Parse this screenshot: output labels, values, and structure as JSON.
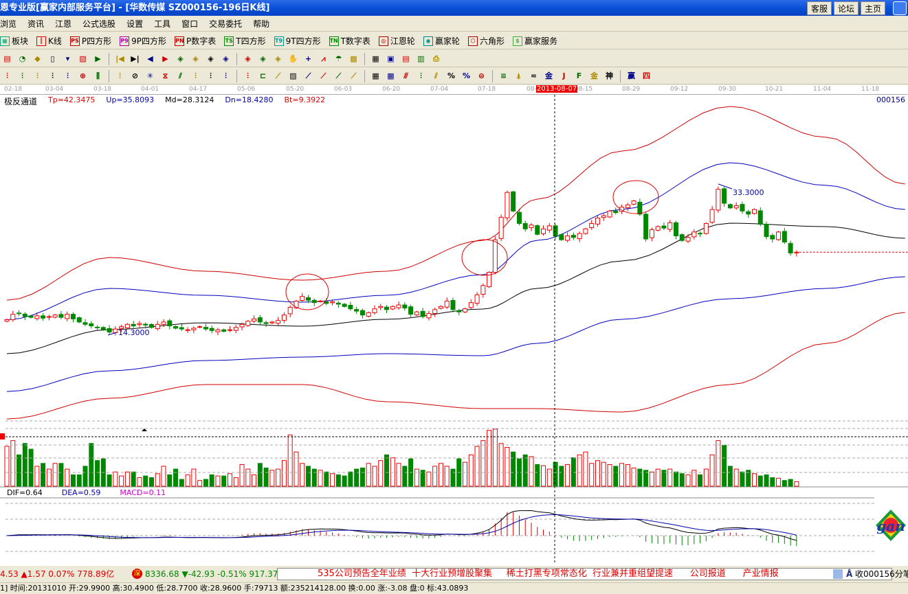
{
  "window": {
    "title": "恩专业版[赢家内部服务平台] - [华数传媒   SZ000156-196日K线]",
    "buttons": [
      "客服",
      "论坛",
      "主页"
    ]
  },
  "menu": [
    "浏览",
    "资讯",
    "江恩",
    "公式选股",
    "设置",
    "工具",
    "窗口",
    "交易委托",
    "帮助"
  ],
  "toolbar1": [
    {
      "icon": "blocks-icon",
      "glyph": "▦",
      "label": "板块",
      "color": "#0a7"
    },
    {
      "icon": "kline-icon",
      "glyph": "┃",
      "label": "K线",
      "color": "#d00"
    },
    {
      "icon": "ps-icon",
      "glyph": "PS",
      "label": "P四方形",
      "color": "#b00"
    },
    {
      "icon": "p9-icon",
      "glyph": "P9",
      "label": "9P四方形",
      "color": "#a0a"
    },
    {
      "icon": "pn-icon",
      "glyph": "PN",
      "label": "P数字表",
      "color": "#b00"
    },
    {
      "icon": "ts-icon",
      "glyph": "TS",
      "label": "T四方形",
      "color": "#080"
    },
    {
      "icon": "t9-icon",
      "glyph": "T9",
      "label": "9T四方形",
      "color": "#099"
    },
    {
      "icon": "tn-icon",
      "glyph": "TN",
      "label": "T数字表",
      "color": "#080"
    },
    {
      "icon": "gann-wheel-icon",
      "glyph": "◎",
      "label": "江恩轮",
      "color": "#a00"
    },
    {
      "icon": "winner-wheel-icon",
      "glyph": "◉",
      "label": "赢家轮",
      "color": "#088"
    },
    {
      "icon": "hexagon-icon",
      "glyph": "⬡",
      "label": "六角形",
      "color": "#a00"
    },
    {
      "icon": "dollar-icon",
      "glyph": "$",
      "label": "赢家服务",
      "color": "#4a4"
    }
  ],
  "toolbar2": [
    "▤",
    "◔",
    "◆",
    "▯",
    "▾",
    "▧",
    "▶",
    "|◀",
    "▶|",
    "◀",
    "▶",
    "◈",
    "◈",
    "◈",
    "◈",
    "◈",
    "◈",
    "◈",
    "✋",
    "+",
    "⩘",
    "☂",
    "▩",
    "▦",
    "▣",
    "▤",
    "▥",
    "⎙"
  ],
  "toolbar3": [
    "⫶",
    "⫶",
    "⫶",
    "⫶",
    "⫶",
    "⊕",
    "⫼",
    "⫶",
    "⊘",
    "✳",
    "⧖",
    "⫽",
    "⫶",
    "⫶",
    "⫶",
    "⫶",
    "⊏",
    "⟋",
    "▨",
    "⟋",
    "⟋",
    "⟋",
    "⟋",
    "▦",
    "▦",
    "⫻",
    "⫶",
    "⫽",
    "%",
    "%",
    "⊜",
    "≡",
    "⍋",
    "≂",
    "金",
    "J",
    "F",
    "金",
    "神",
    "赢",
    "四"
  ],
  "date_axis": {
    "labels": [
      "02-18",
      "03-04",
      "03-18",
      "04-01",
      "04-17",
      "05-06",
      "05-20",
      "06-03",
      "06-20",
      "07-04",
      "07-18",
      "08-",
      "08-15",
      "08-29",
      "09-12",
      "09-30",
      "10-21",
      "11-04",
      "11-18"
    ],
    "cursor_date": "2013-08-07"
  },
  "indicator": {
    "name": "极反通道",
    "tp": "Tp=42.3475",
    "up": "Up=35.8093",
    "md": "Md=28.3124",
    "dn": "Dn=18.4280",
    "bt": "Bt=9.3922",
    "code": "000156"
  },
  "colors": {
    "up": "#e00000",
    "down": "#008000",
    "upper_band": "#d00000",
    "mid_band": "#0000c0",
    "center": "#000000"
  },
  "chart_data": {
    "type": "candlestick",
    "closes": [
      16.2,
      16.9,
      17.0,
      16.6,
      16.5,
      16.7,
      16.4,
      16.6,
      16.8,
      16.5,
      16.9,
      16.3,
      15.9,
      15.6,
      15.4,
      15.2,
      14.9,
      14.6,
      15.0,
      15.3,
      15.6,
      15.4,
      15.7,
      15.5,
      15.2,
      15.6,
      15.9,
      15.4,
      15.1,
      15.0,
      14.9,
      15.1,
      15.3,
      15.0,
      14.8,
      14.9,
      14.7,
      14.9,
      15.2,
      15.6,
      16.0,
      16.3,
      15.9,
      15.7,
      15.9,
      16.1,
      16.8,
      17.8,
      18.6,
      19.2,
      18.7,
      18.4,
      18.6,
      18.3,
      18.5,
      18.2,
      17.9,
      17.6,
      17.3,
      16.8,
      17.1,
      17.6,
      17.9,
      17.5,
      17.9,
      18.1,
      17.7,
      16.9,
      17.2,
      16.6,
      17.0,
      17.5,
      17.9,
      18.6,
      17.5,
      17.2,
      17.6,
      18.4,
      19.4,
      20.6,
      22.3,
      26.5,
      29.4,
      32.6,
      30.2,
      28.6,
      27.9,
      28.4,
      27.2,
      27.9,
      28.3,
      27.0,
      26.5,
      27.0,
      26.8,
      27.3,
      27.9,
      28.6,
      29.3,
      29.6,
      30.2,
      30.0,
      30.7,
      31.0,
      31.5,
      29.8,
      26.6,
      27.8,
      28.2,
      28.0,
      28.7,
      27.0,
      26.4,
      26.8,
      27.5,
      27.3,
      28.6,
      30.4,
      33.0,
      31.2,
      30.6,
      30.9,
      30.2,
      29.8,
      30.4,
      28.5,
      26.9,
      26.6,
      27.5,
      26.2,
      24.8,
      24.9
    ],
    "volumes": [
      70,
      80,
      55,
      75,
      65,
      35,
      40,
      30,
      40,
      40,
      30,
      20,
      20,
      35,
      75,
      45,
      48,
      20,
      25,
      18,
      25,
      25,
      15,
      18,
      15,
      22,
      35,
      20,
      30,
      12,
      20,
      30,
      10,
      12,
      20,
      18,
      18,
      22,
      15,
      38,
      30,
      20,
      40,
      32,
      28,
      30,
      45,
      90,
      60,
      40,
      35,
      30,
      28,
      25,
      22,
      20,
      18,
      25,
      30,
      32,
      40,
      35,
      45,
      55,
      50,
      40,
      35,
      48,
      30,
      28,
      25,
      35,
      40,
      35,
      30,
      48,
      42,
      55,
      70,
      80,
      98,
      100,
      75,
      68,
      60,
      48,
      55,
      52,
      38,
      36,
      30,
      42,
      35,
      38,
      50,
      55,
      60,
      40,
      45,
      42,
      38,
      35,
      40,
      38,
      32,
      30,
      28,
      25,
      30,
      28,
      30,
      25,
      22,
      20,
      28,
      20,
      30,
      55,
      80,
      72,
      35,
      30,
      25,
      28,
      22,
      18,
      20,
      15,
      14,
      10,
      12,
      8
    ],
    "bands": {
      "bar_index": [
        0,
        17,
        33,
        49,
        63,
        79,
        88,
        102,
        120,
        136,
        149
      ],
      "tp": [
        18.72,
        24.21,
        22.44,
        21.29,
        22.44,
        26.42,
        31.73,
        37.93,
        43.68,
        39.7,
        33.68
      ],
      "up": [
        16.2,
        20.23,
        19.34,
        18.46,
        19.34,
        22.0,
        26.42,
        30.41,
        36.42,
        33.5,
        30.41
      ],
      "md": [
        11.82,
        14.92,
        15.8,
        15.36,
        16.25,
        17.57,
        20.23,
        23.77,
        28.64,
        28.19,
        26.69
      ],
      "dn": [
        6.95,
        9.61,
        10.94,
        11.38,
        11.82,
        11.56,
        13.15,
        16.25,
        18.9,
        20.23,
        21.73
      ],
      "bt": [
        3.41,
        6.07,
        7.84,
        7.84,
        5.63,
        4.74,
        4.74,
        4.3,
        7.84,
        13.15,
        17.13
      ]
    },
    "annotations": {
      "high": "33.3000",
      "low": "14.3000"
    }
  },
  "macd": {
    "dif": "DIF=0.64",
    "dea": "DEA=0.59",
    "macd": "MACD=0.11"
  },
  "ticker": {
    "sh": "4.53 ▲1.57 0.07% 778.89亿",
    "sz_badge": "深",
    "sz": "8336.68 ▼-42.93 -0.51% 917.37亿",
    "news": "535公司预告全年业绩  十大行业预增股聚集     稀土打黑专项常态化  行业兼并重组望提速      公司报道      产业情报",
    "right": "收000156分笔"
  },
  "status": "1] 时间:20131010 开:29.9900 高:30.4900 低:28.7700 收:28.9600 手:79713 额:235214128.00 换:0.00 涨:-3.08 盘:0 标:43.0893",
  "logo": "gann"
}
